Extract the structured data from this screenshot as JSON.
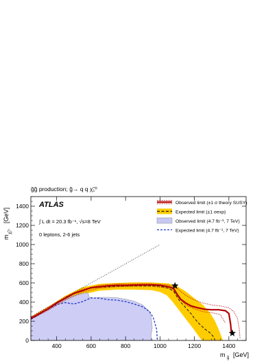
{
  "chart_data": {
    "type": "line",
    "title": "g̃g̃ production; g̃→ q q χ̃₁⁰",
    "xlabel": "m",
    "xlabel_sub": "g̃",
    "xlabel_unit": "[GeV]",
    "ylabel": "m",
    "ylabel_sub": "χ̃₁⁰",
    "ylabel_unit": "[GeV]",
    "xlim": [
      250,
      1500
    ],
    "ylim": [
      0,
      1500
    ],
    "x_ticks": [
      400,
      600,
      800,
      1000,
      1200,
      1400
    ],
    "y_ticks": [
      0,
      200,
      400,
      600,
      800,
      1000,
      1200,
      1400
    ],
    "grid": false,
    "legend_position": "top-right",
    "annotations": {
      "experiment": "ATLAS",
      "lumi": "∫ L dt = 20.3 fb⁻¹,  √s=8 TeV",
      "selection": "0 leptons, 2-6 jets"
    },
    "legend": [
      "Observed limit (±1 σ theory SUSY)",
      "Expected limit (±1 σexp)",
      "Observed limit (4.7 fb⁻¹, 7 TeV)",
      "Expected limit (4.7 fb⁻¹, 7 TeV)"
    ],
    "series": [
      {
        "name": "Observed limit (±1 σ theory SUSY)",
        "style": "solid",
        "color": "#b30000",
        "x": [
          250,
          300,
          350,
          400,
          450,
          500,
          550,
          600,
          650,
          700,
          750,
          800,
          850,
          900,
          950,
          1000,
          1050,
          1080,
          1100,
          1120,
          1150,
          1180,
          1220,
          1260,
          1300,
          1340,
          1380,
          1400,
          1410,
          1415
        ],
        "y": [
          230,
          280,
          330,
          390,
          440,
          490,
          520,
          550,
          560,
          570,
          575,
          575,
          578,
          580,
          580,
          575,
          560,
          540,
          480,
          430,
          390,
          360,
          340,
          325,
          320,
          320,
          310,
          280,
          170,
          75
        ]
      },
      {
        "name": "Observed limit -1σ theory",
        "style": "dotted",
        "color": "#b30000",
        "x": [
          250,
          350,
          450,
          550,
          650,
          750,
          850,
          950,
          1050,
          1080,
          1110,
          1150,
          1200,
          1250,
          1300,
          1350,
          1380
        ],
        "y": [
          220,
          315,
          420,
          505,
          545,
          560,
          565,
          565,
          545,
          520,
          440,
          370,
          330,
          300,
          290,
          270,
          180
        ]
      },
      {
        "name": "Observed limit +1σ theory",
        "style": "dotted",
        "color": "#b30000",
        "x": [
          250,
          350,
          450,
          550,
          650,
          750,
          850,
          950,
          1050,
          1100,
          1150,
          1200,
          1250,
          1300,
          1350,
          1400,
          1430,
          1450,
          1460,
          1465
        ],
        "y": [
          240,
          345,
          455,
          535,
          575,
          590,
          592,
          592,
          580,
          540,
          470,
          420,
          390,
          370,
          360,
          340,
          300,
          230,
          120,
          20
        ]
      },
      {
        "name": "Expected limit (±1 σexp)",
        "style": "dashed",
        "color": "#1a1a1a",
        "x": [
          250,
          300,
          350,
          400,
          450,
          500,
          550,
          600,
          650,
          700,
          750,
          800,
          850,
          900,
          950,
          1000,
          1050,
          1080,
          1100,
          1120,
          1150,
          1180,
          1200,
          1230,
          1260,
          1290,
          1310,
          1320
        ],
        "y": [
          230,
          280,
          330,
          390,
          440,
          490,
          520,
          545,
          555,
          560,
          565,
          568,
          570,
          570,
          570,
          565,
          545,
          510,
          450,
          400,
          340,
          280,
          230,
          170,
          120,
          80,
          40,
          0
        ]
      },
      {
        "name": "Expected limit -1σexp",
        "style": "band-edge",
        "color": "#ffcc00",
        "x": [
          250,
          350,
          450,
          550,
          650,
          750,
          850,
          950,
          1000,
          1040,
          1070,
          1100,
          1130,
          1160,
          1190,
          1210,
          1230,
          1245
        ],
        "y": [
          215,
          310,
          410,
          480,
          520,
          530,
          530,
          525,
          505,
          470,
          410,
          340,
          270,
          200,
          130,
          80,
          30,
          0
        ]
      },
      {
        "name": "Expected limit +1σexp",
        "style": "band-edge",
        "color": "#ffcc00",
        "x": [
          250,
          350,
          450,
          550,
          650,
          750,
          850,
          950,
          1050,
          1100,
          1150,
          1200,
          1250,
          1290,
          1320,
          1340,
          1355,
          1365
        ],
        "y": [
          245,
          350,
          465,
          555,
          590,
          600,
          605,
          605,
          595,
          565,
          510,
          440,
          370,
          290,
          200,
          120,
          50,
          0
        ]
      },
      {
        "name": "Observed limit (4.7 fb⁻¹, 7 TeV)",
        "style": "filled",
        "color": "#c8c8f5",
        "x": [
          250,
          300,
          350,
          400,
          450,
          500,
          550,
          580,
          590,
          600,
          650,
          700,
          750,
          800,
          850,
          900,
          940,
          950,
          955,
          950,
          948,
          955,
          960
        ],
        "y": [
          220,
          270,
          330,
          380,
          430,
          470,
          490,
          500,
          450,
          440,
          450,
          450,
          445,
          430,
          410,
          370,
          300,
          230,
          130,
          70,
          40,
          10,
          0
        ]
      },
      {
        "name": "Expected limit (4.7 fb⁻¹, 7 TeV)",
        "style": "dashed",
        "color": "#1f35c8",
        "x": [
          250,
          300,
          350,
          400,
          450,
          500,
          550,
          600,
          650,
          700,
          750,
          800,
          850,
          900,
          940,
          960,
          980,
          985
        ],
        "y": [
          220,
          275,
          325,
          375,
          395,
          380,
          405,
          445,
          440,
          425,
          420,
          405,
          380,
          350,
          300,
          240,
          120,
          0
        ]
      },
      {
        "name": "Kinematic limit",
        "style": "dotted",
        "color": "#333333",
        "x": [
          250,
          1000
        ],
        "y": [
          250,
          1000
        ]
      }
    ],
    "markers": [
      {
        "symbol": "star",
        "x": 1087,
        "y": 570
      },
      {
        "symbol": "star",
        "x": 1420,
        "y": 75
      }
    ]
  }
}
